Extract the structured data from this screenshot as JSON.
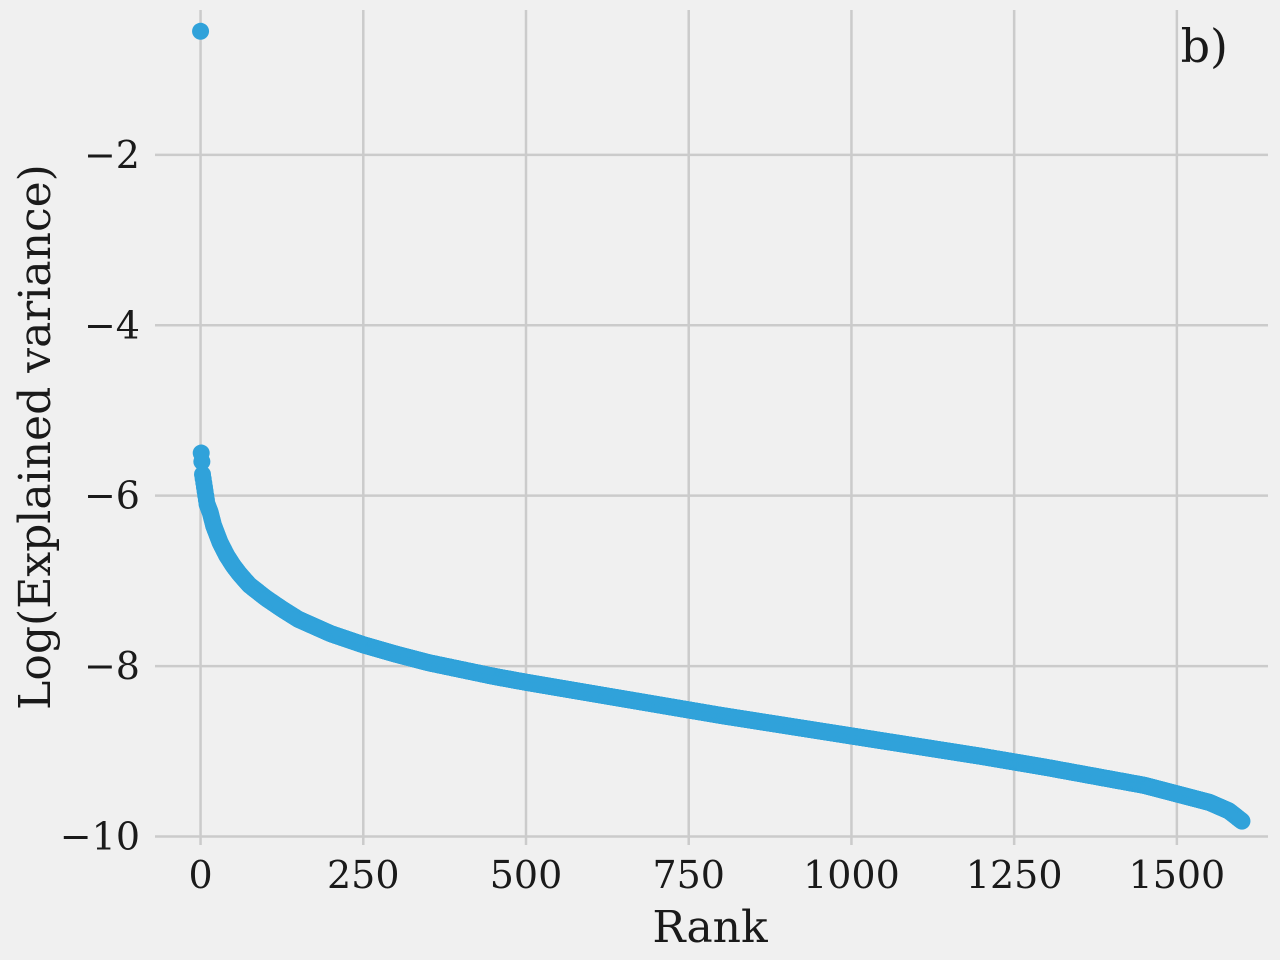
{
  "chart_data": {
    "type": "scatter",
    "panel_label": "b)",
    "xlabel": "Rank",
    "ylabel": "Log(Explained variance)",
    "xlim": [
      -70,
      1640
    ],
    "ylim": [
      -10.1,
      -0.3
    ],
    "xticks": [
      0,
      250,
      500,
      750,
      1000,
      1250,
      1500
    ],
    "xtick_labels": [
      "0",
      "250",
      "500",
      "750",
      "1000",
      "1250",
      "1500"
    ],
    "yticks": [
      -2,
      -4,
      -6,
      -8,
      -10
    ],
    "ytick_labels": [
      "−2",
      "−4",
      "−6",
      "−8",
      "−10"
    ],
    "grid": true,
    "marker_color": "#30a2da",
    "background_color": "#f0f0f0",
    "grid_color": "#cbcbcb",
    "series": [
      {
        "n_points": 1600,
        "x": [
          0,
          1,
          2,
          3,
          5,
          8,
          10,
          15,
          20,
          25,
          30,
          40,
          50,
          60,
          75,
          100,
          125,
          150,
          200,
          250,
          300,
          350,
          400,
          450,
          500,
          600,
          700,
          800,
          900,
          1000,
          1100,
          1200,
          1300,
          1400,
          1450,
          1500,
          1550,
          1580,
          1600
        ],
        "y": [
          -0.55,
          -5.5,
          -5.6,
          -5.75,
          -5.85,
          -6.0,
          -6.1,
          -6.2,
          -6.35,
          -6.45,
          -6.55,
          -6.7,
          -6.82,
          -6.92,
          -7.05,
          -7.2,
          -7.33,
          -7.45,
          -7.62,
          -7.75,
          -7.86,
          -7.96,
          -8.04,
          -8.12,
          -8.19,
          -8.32,
          -8.45,
          -8.58,
          -8.7,
          -8.82,
          -8.94,
          -9.06,
          -9.19,
          -9.33,
          -9.4,
          -9.5,
          -9.6,
          -9.7,
          -9.82
        ]
      }
    ]
  }
}
